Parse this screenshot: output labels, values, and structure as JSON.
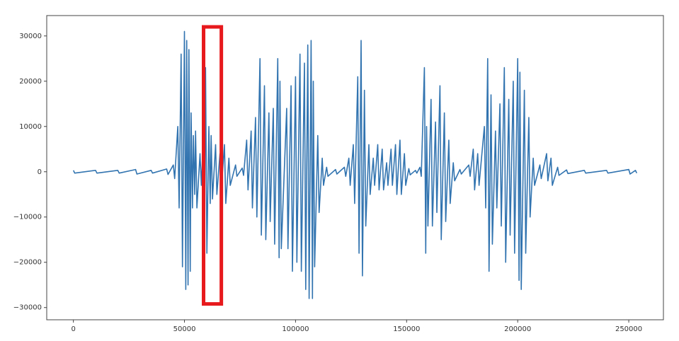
{
  "chart_data": {
    "type": "line",
    "color": "#3274b0",
    "x": [
      0,
      600,
      10000,
      10600,
      20000,
      20600,
      28000,
      28600,
      35000,
      35600,
      42000,
      42600,
      45000,
      45600,
      47000,
      47600,
      48500,
      49100,
      50000,
      50600,
      51000,
      51600,
      52000,
      52600,
      53000,
      53600,
      54000,
      54600,
      55000,
      55600,
      57000,
      57600,
      58500,
      59100,
      59500,
      60100,
      61000,
      61600,
      62000,
      62600,
      64000,
      64600,
      66000,
      66600,
      68000,
      68600,
      70000,
      70600,
      73000,
      73600,
      76000,
      76600,
      78000,
      78600,
      80000,
      80600,
      82000,
      82600,
      84000,
      84600,
      86000,
      86600,
      88000,
      88600,
      90000,
      90600,
      92000,
      92600,
      93000,
      93600,
      96000,
      96600,
      98000,
      98600,
      100000,
      100600,
      102000,
      102600,
      104000,
      104600,
      105500,
      106100,
      107000,
      107600,
      108000,
      108600,
      110000,
      110600,
      112000,
      112600,
      114000,
      114600,
      118000,
      118600,
      122000,
      122600,
      124000,
      124600,
      126000,
      126600,
      128000,
      128600,
      129500,
      130100,
      131000,
      131600,
      133000,
      133600,
      135000,
      135600,
      137000,
      137600,
      139000,
      139600,
      141000,
      141600,
      143000,
      143600,
      145000,
      145600,
      147000,
      147600,
      149000,
      149600,
      151000,
      151600,
      154000,
      154600,
      156000,
      156600,
      158000,
      158600,
      159000,
      159600,
      161000,
      161600,
      163000,
      163600,
      165000,
      165600,
      167000,
      167600,
      169000,
      169600,
      171000,
      171600,
      174000,
      174600,
      178000,
      178600,
      180000,
      180600,
      182000,
      182600,
      185000,
      185600,
      186500,
      187100,
      188000,
      188600,
      190000,
      190600,
      192000,
      192600,
      194000,
      194600,
      196000,
      196600,
      198000,
      198600,
      200000,
      200600,
      201000,
      201600,
      203000,
      203600,
      205000,
      205600,
      207000,
      207600,
      210000,
      210600,
      213000,
      213600,
      215000,
      215600,
      218000,
      218600,
      222000,
      222600,
      230000,
      230600,
      240000,
      240600,
      250000,
      250600,
      253000,
      253600
    ],
    "values": [
      300,
      -300,
      300,
      -300,
      300,
      -300,
      500,
      -500,
      300,
      -300,
      600,
      -600,
      1500,
      -1500,
      10000,
      -8000,
      26000,
      -21000,
      31000,
      -26000,
      29000,
      -25000,
      27000,
      -22000,
      13000,
      -8000,
      8000,
      -5000,
      9000,
      -8000,
      4000,
      -3000,
      8000,
      -6000,
      23000,
      -18000,
      10000,
      -7000,
      8000,
      -6000,
      6000,
      -5000,
      4000,
      -4000,
      6000,
      -7000,
      3000,
      -3000,
      1500,
      -1000,
      800,
      -800,
      7000,
      -4000,
      9000,
      -8000,
      12000,
      -10000,
      25000,
      -14000,
      19000,
      -15000,
      13000,
      -11000,
      14000,
      -16000,
      25000,
      -19000,
      20000,
      -17000,
      14000,
      -17000,
      19000,
      -22000,
      21000,
      -20000,
      26000,
      -22000,
      24000,
      -26000,
      28000,
      -28000,
      29000,
      -28000,
      20000,
      -21000,
      8000,
      -9000,
      3000,
      -3000,
      1000,
      -1000,
      500,
      -500,
      1000,
      -1000,
      3000,
      -3000,
      6000,
      -7000,
      21000,
      -18000,
      29000,
      -23000,
      18000,
      -12000,
      6000,
      -5000,
      3000,
      -3000,
      6000,
      -4000,
      5000,
      -4000,
      2000,
      -3000,
      5000,
      -3000,
      6000,
      -5000,
      7000,
      -5000,
      4000,
      -3000,
      700,
      -700,
      300,
      -300,
      1000,
      -1000,
      23000,
      -18000,
      10000,
      -12000,
      16000,
      -12000,
      11000,
      -9000,
      19000,
      -15000,
      13000,
      -11000,
      7000,
      -7000,
      2000,
      -2000,
      500,
      -500,
      1500,
      -1000,
      5000,
      -4000,
      4000,
      -3000,
      10000,
      -8000,
      25000,
      -22000,
      17000,
      -16000,
      9000,
      -8000,
      15000,
      -12000,
      23000,
      -20000,
      16000,
      -14000,
      20000,
      -18000,
      25000,
      -24000,
      22000,
      -26000,
      18000,
      -18000,
      12000,
      -10000,
      3000,
      -3000,
      1500,
      -1500,
      4000,
      -2000,
      3000,
      -3000,
      1000,
      -800,
      400,
      -400,
      300,
      -300,
      300,
      -300,
      500,
      -500,
      300,
      -300
    ],
    "xlim": [
      -12000,
      265600
    ],
    "ylim": [
      -32700,
      34500
    ],
    "xticks": [
      0,
      50000,
      100000,
      150000,
      200000,
      250000
    ],
    "yticks": [
      {
        "value": -30000,
        "label": "−30000"
      },
      {
        "value": -20000,
        "label": "−20000"
      },
      {
        "value": -10000,
        "label": "−10000"
      },
      0,
      10000,
      20000,
      30000
    ],
    "highlight": {
      "x": [
        58600,
        66600
      ],
      "y": [
        -29200,
        32000
      ],
      "color": "#e8191c"
    }
  }
}
